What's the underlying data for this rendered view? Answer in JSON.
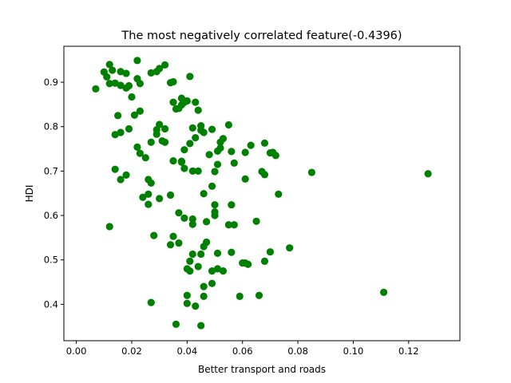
{
  "chart_data": {
    "type": "scatter",
    "title": "The most negatively correlated feature(-0.4396)",
    "xlabel": "Better transport and roads",
    "ylabel": "HDI",
    "xlim": [
      -0.0045,
      0.1385
    ],
    "ylim": [
      0.318,
      0.981
    ],
    "xticks": [
      0.0,
      0.02,
      0.04,
      0.06,
      0.08,
      0.1,
      0.12
    ],
    "xtick_labels": [
      "0.00",
      "0.02",
      "0.04",
      "0.06",
      "0.08",
      "0.10",
      "0.12"
    ],
    "yticks": [
      0.4,
      0.5,
      0.6,
      0.7,
      0.8,
      0.9
    ],
    "ytick_labels": [
      "0.4",
      "0.5",
      "0.6",
      "0.7",
      "0.8",
      "0.9"
    ],
    "grid": false,
    "marker_color": "#008000",
    "series": [
      {
        "points": [
          [
            0.007,
            0.885
          ],
          [
            0.01,
            0.923
          ],
          [
            0.011,
            0.912
          ],
          [
            0.012,
            0.94
          ],
          [
            0.012,
            0.897
          ],
          [
            0.013,
            0.927
          ],
          [
            0.014,
            0.898
          ],
          [
            0.016,
            0.893
          ],
          [
            0.016,
            0.924
          ],
          [
            0.018,
            0.887
          ],
          [
            0.018,
            0.92
          ],
          [
            0.019,
            0.892
          ],
          [
            0.02,
            0.867
          ],
          [
            0.022,
            0.949
          ],
          [
            0.022,
            0.908
          ],
          [
            0.023,
            0.897
          ],
          [
            0.027,
            0.921
          ],
          [
            0.029,
            0.924
          ],
          [
            0.03,
            0.931
          ],
          [
            0.032,
            0.939
          ],
          [
            0.034,
            0.899
          ],
          [
            0.035,
            0.901
          ],
          [
            0.041,
            0.913
          ],
          [
            0.014,
            0.782
          ],
          [
            0.015,
            0.825
          ],
          [
            0.016,
            0.787
          ],
          [
            0.019,
            0.795
          ],
          [
            0.021,
            0.826
          ],
          [
            0.023,
            0.835
          ],
          [
            0.022,
            0.754
          ],
          [
            0.023,
            0.74
          ],
          [
            0.025,
            0.73
          ],
          [
            0.027,
            0.765
          ],
          [
            0.029,
            0.793
          ],
          [
            0.029,
            0.783
          ],
          [
            0.03,
            0.805
          ],
          [
            0.031,
            0.768
          ],
          [
            0.032,
            0.795
          ],
          [
            0.032,
            0.765
          ],
          [
            0.035,
            0.855
          ],
          [
            0.036,
            0.84
          ],
          [
            0.037,
            0.841
          ],
          [
            0.038,
            0.849
          ],
          [
            0.038,
            0.864
          ],
          [
            0.039,
            0.855
          ],
          [
            0.04,
            0.858
          ],
          [
            0.043,
            0.855
          ],
          [
            0.044,
            0.837
          ],
          [
            0.045,
            0.802
          ],
          [
            0.042,
            0.797
          ],
          [
            0.039,
            0.748
          ],
          [
            0.041,
            0.762
          ],
          [
            0.043,
            0.775
          ],
          [
            0.045,
            0.792
          ],
          [
            0.046,
            0.787
          ],
          [
            0.049,
            0.794
          ],
          [
            0.051,
            0.745
          ],
          [
            0.052,
            0.752
          ],
          [
            0.052,
            0.765
          ],
          [
            0.053,
            0.773
          ],
          [
            0.055,
            0.804
          ],
          [
            0.056,
            0.744
          ],
          [
            0.048,
            0.737
          ],
          [
            0.051,
            0.715
          ],
          [
            0.061,
            0.742
          ],
          [
            0.063,
            0.758
          ],
          [
            0.068,
            0.763
          ],
          [
            0.07,
            0.741
          ],
          [
            0.071,
            0.742
          ],
          [
            0.072,
            0.735
          ],
          [
            0.014,
            0.704
          ],
          [
            0.016,
            0.681
          ],
          [
            0.018,
            0.691
          ],
          [
            0.026,
            0.681
          ],
          [
            0.027,
            0.673
          ],
          [
            0.035,
            0.723
          ],
          [
            0.038,
            0.722
          ],
          [
            0.038,
            0.72
          ],
          [
            0.039,
            0.706
          ],
          [
            0.042,
            0.7
          ],
          [
            0.044,
            0.7
          ],
          [
            0.049,
            0.666
          ],
          [
            0.05,
            0.699
          ],
          [
            0.057,
            0.718
          ],
          [
            0.061,
            0.682
          ],
          [
            0.067,
            0.699
          ],
          [
            0.068,
            0.692
          ],
          [
            0.085,
            0.697
          ],
          [
            0.127,
            0.694
          ],
          [
            0.024,
            0.641
          ],
          [
            0.026,
            0.648
          ],
          [
            0.026,
            0.625
          ],
          [
            0.03,
            0.638
          ],
          [
            0.034,
            0.646
          ],
          [
            0.037,
            0.606
          ],
          [
            0.039,
            0.594
          ],
          [
            0.042,
            0.592
          ],
          [
            0.042,
            0.58
          ],
          [
            0.046,
            0.649
          ],
          [
            0.047,
            0.586
          ],
          [
            0.05,
            0.624
          ],
          [
            0.05,
            0.608
          ],
          [
            0.05,
            0.6
          ],
          [
            0.055,
            0.579
          ],
          [
            0.056,
            0.624
          ],
          [
            0.057,
            0.579
          ],
          [
            0.065,
            0.587
          ],
          [
            0.073,
            0.648
          ],
          [
            0.012,
            0.575
          ],
          [
            0.028,
            0.555
          ],
          [
            0.034,
            0.534
          ],
          [
            0.035,
            0.553
          ],
          [
            0.037,
            0.538
          ],
          [
            0.04,
            0.48
          ],
          [
            0.041,
            0.497
          ],
          [
            0.041,
            0.475
          ],
          [
            0.042,
            0.513
          ],
          [
            0.044,
            0.485
          ],
          [
            0.045,
            0.513
          ],
          [
            0.046,
            0.53
          ],
          [
            0.047,
            0.54
          ],
          [
            0.049,
            0.475
          ],
          [
            0.051,
            0.515
          ],
          [
            0.051,
            0.48
          ],
          [
            0.053,
            0.475
          ],
          [
            0.056,
            0.517
          ],
          [
            0.06,
            0.493
          ],
          [
            0.061,
            0.493
          ],
          [
            0.062,
            0.49
          ],
          [
            0.068,
            0.497
          ],
          [
            0.07,
            0.518
          ],
          [
            0.077,
            0.527
          ],
          [
            0.027,
            0.404
          ],
          [
            0.036,
            0.355
          ],
          [
            0.04,
            0.42
          ],
          [
            0.04,
            0.402
          ],
          [
            0.043,
            0.396
          ],
          [
            0.045,
            0.352
          ],
          [
            0.046,
            0.44
          ],
          [
            0.046,
            0.418
          ],
          [
            0.049,
            0.447
          ],
          [
            0.059,
            0.418
          ],
          [
            0.066,
            0.42
          ],
          [
            0.111,
            0.427
          ]
        ]
      }
    ]
  }
}
